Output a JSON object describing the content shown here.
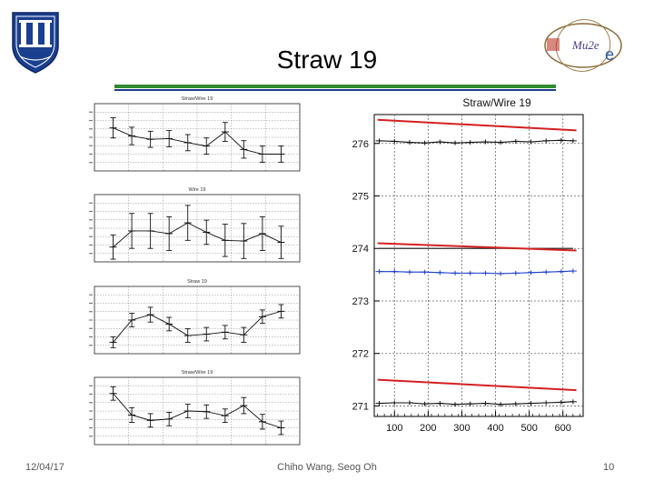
{
  "slide": {
    "title": "Straw 19",
    "footer_date": "12/04/17",
    "footer_author": "Chiho Wang, Seog Oh",
    "page_number": "10",
    "right_logo_text": "Mu2e"
  },
  "colors": {
    "green_rule": "#2e8b2e",
    "blue_rule": "#1f3a8a",
    "red_fit": "#d42020",
    "blue_series": "#1a3cc8",
    "black_series": "#111111",
    "duke_blue": "#1b3f8f"
  },
  "chart_data": [
    {
      "type": "line",
      "title": "Straw/Wire 19",
      "xlim": [
        40,
        660
      ],
      "ylim": [
        270.8,
        276.55
      ],
      "xticks": [
        100,
        200,
        300,
        400,
        500,
        600
      ],
      "yticks": [
        271,
        272,
        273,
        274,
        275,
        276
      ],
      "ytick_labels": [
        "271",
        "272",
        "273",
        "274",
        "275",
        "276"
      ],
      "grid": true,
      "series": [
        {
          "color": "#111111",
          "x": [
            55,
            100,
            145,
            190,
            235,
            280,
            325,
            370,
            415,
            460,
            505,
            550,
            595,
            630
          ],
          "y": [
            276.05,
            276.04,
            276.02,
            276.01,
            276.03,
            276.01,
            276.02,
            276.03,
            276.02,
            276.04,
            276.03,
            276.05,
            276.06,
            276.05
          ]
        },
        {
          "color": "#111111",
          "x": [
            55,
            630
          ],
          "y": [
            274.0,
            274.0
          ]
        },
        {
          "color": "#1a3cc8",
          "x": [
            55,
            100,
            145,
            190,
            235,
            280,
            325,
            370,
            415,
            460,
            505,
            550,
            595,
            630
          ],
          "y": [
            273.56,
            273.56,
            273.55,
            273.55,
            273.54,
            273.53,
            273.53,
            273.53,
            273.52,
            273.53,
            273.54,
            273.55,
            273.56,
            273.57
          ]
        },
        {
          "color": "#111111",
          "x": [
            55,
            100,
            145,
            190,
            235,
            280,
            325,
            370,
            415,
            460,
            505,
            550,
            595,
            630
          ],
          "y": [
            271.05,
            271.06,
            271.06,
            271.04,
            271.05,
            271.03,
            271.04,
            271.05,
            271.03,
            271.04,
            271.05,
            271.06,
            271.07,
            271.08
          ]
        },
        {
          "color": "#d42020",
          "x": [
            50,
            640
          ],
          "y": [
            276.45,
            276.25
          ]
        },
        {
          "color": "#d42020",
          "x": [
            50,
            640
          ],
          "y": [
            274.1,
            273.96
          ]
        },
        {
          "color": "#d42020",
          "x": [
            50,
            640
          ],
          "y": [
            271.5,
            271.3
          ]
        }
      ]
    },
    {
      "type": "line",
      "title": "Straw/Wire 19",
      "xlim": [
        0,
        11
      ],
      "ylim": [
        0,
        10
      ],
      "grid": true,
      "series": [
        {
          "color": "#111111",
          "x": [
            1,
            2,
            3,
            4,
            5,
            6,
            7,
            8,
            9,
            10
          ],
          "y": [
            6.4,
            5.2,
            4.7,
            4.8,
            4.2,
            3.7,
            5.8,
            3.2,
            2.5,
            2.5
          ],
          "yerr": [
            1.5,
            1.3,
            1.2,
            1.2,
            1.2,
            1.2,
            1.4,
            1.3,
            1.2,
            1.2
          ]
        }
      ]
    },
    {
      "type": "line",
      "title": "Wire 19",
      "xlim": [
        0,
        11
      ],
      "ylim": [
        0,
        10
      ],
      "grid": true,
      "series": [
        {
          "color": "#111111",
          "x": [
            1,
            2,
            3,
            4,
            5,
            6,
            7,
            8,
            9,
            10
          ],
          "y": [
            2.2,
            4.6,
            4.6,
            4.2,
            5.8,
            4.4,
            3.2,
            3.1,
            4.2,
            2.9
          ],
          "yerr": [
            1.8,
            2.6,
            2.6,
            2.5,
            2.6,
            1.8,
            2.4,
            2.6,
            2.5,
            2.4
          ]
        }
      ]
    },
    {
      "type": "line",
      "title": "Straw 19",
      "xlim": [
        0,
        11
      ],
      "ylim": [
        0,
        10
      ],
      "grid": true,
      "series": [
        {
          "color": "#111111",
          "x": [
            1,
            2,
            3,
            4,
            5,
            6,
            7,
            8,
            9,
            10
          ],
          "y": [
            1.7,
            5.0,
            5.8,
            4.4,
            2.7,
            2.9,
            3.2,
            2.8,
            5.5,
            6.3
          ],
          "yerr": [
            0.8,
            1.0,
            1.1,
            1.0,
            1.0,
            1.0,
            1.0,
            1.1,
            1.0,
            1.0
          ]
        }
      ]
    },
    {
      "type": "line",
      "title": "Straw/Wire 19",
      "xlim": [
        0,
        11
      ],
      "ylim": [
        0,
        10
      ],
      "grid": true,
      "series": [
        {
          "color": "#111111",
          "x": [
            1,
            2,
            3,
            4,
            5,
            6,
            7,
            8,
            9,
            10
          ],
          "y": [
            7.6,
            4.4,
            3.6,
            3.8,
            5.0,
            4.9,
            4.3,
            5.8,
            3.4,
            2.5
          ],
          "yerr": [
            1.0,
            1.1,
            1.0,
            1.0,
            1.0,
            1.0,
            1.0,
            1.2,
            1.1,
            1.0
          ]
        }
      ]
    }
  ]
}
